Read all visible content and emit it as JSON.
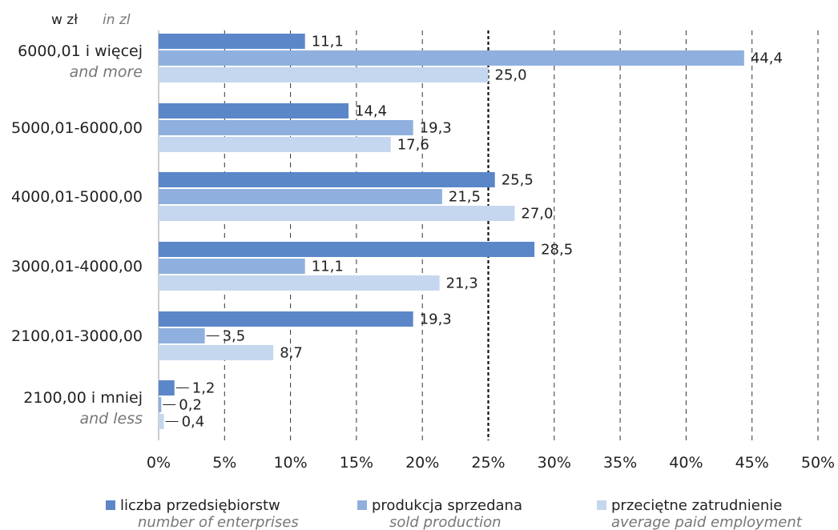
{
  "chart_data": {
    "type": "bar",
    "orientation": "horizontal",
    "unit_label": {
      "pl": "w zł",
      "en": "in zl"
    },
    "categories": [
      {
        "pl": "6000,01 i więcej",
        "en": "and more"
      },
      {
        "pl": "5000,01-6000,00",
        "en": ""
      },
      {
        "pl": "4000,01-5000,00",
        "en": ""
      },
      {
        "pl": "3000,01-4000,00",
        "en": ""
      },
      {
        "pl": "2100,01-3000,00",
        "en": ""
      },
      {
        "pl": "2100,00 i mniej",
        "en": "and less"
      }
    ],
    "series": [
      {
        "name_pl": "liczba przedsiębiorstw",
        "name_en": "number of enterprises",
        "color": "#5b87c9",
        "values": [
          11.1,
          14.4,
          25.5,
          28.5,
          19.3,
          1.2
        ],
        "labels": [
          "11,1",
          "14,4",
          "25,5",
          "28,5",
          "19,3",
          "1,2"
        ]
      },
      {
        "name_pl": "produkcja sprzedana",
        "name_en": "sold production",
        "color": "#8fb0de",
        "values": [
          44.4,
          19.3,
          21.5,
          11.1,
          3.5,
          0.2
        ],
        "labels": [
          "44,4",
          "19,3",
          "21,5",
          "11,1",
          "3,5",
          "0,2"
        ]
      },
      {
        "name_pl": "przeciętne zatrudnienie",
        "name_en": "average paid employment",
        "color": "#c5d6ef",
        "values": [
          25.0,
          17.6,
          27.0,
          21.3,
          8.7,
          0.4
        ],
        "labels": [
          "25,0",
          "17,6",
          "27,0",
          "21,3",
          "8,7",
          "0,4"
        ]
      }
    ],
    "x_ticks": [
      "0%",
      "5%",
      "10%",
      "15%",
      "20%",
      "25%",
      "30%",
      "35%",
      "40%",
      "45%",
      "50%"
    ],
    "xlim": [
      0,
      50
    ],
    "grid": "vertical dashed",
    "reference_line": 25,
    "legend_position": "bottom"
  }
}
